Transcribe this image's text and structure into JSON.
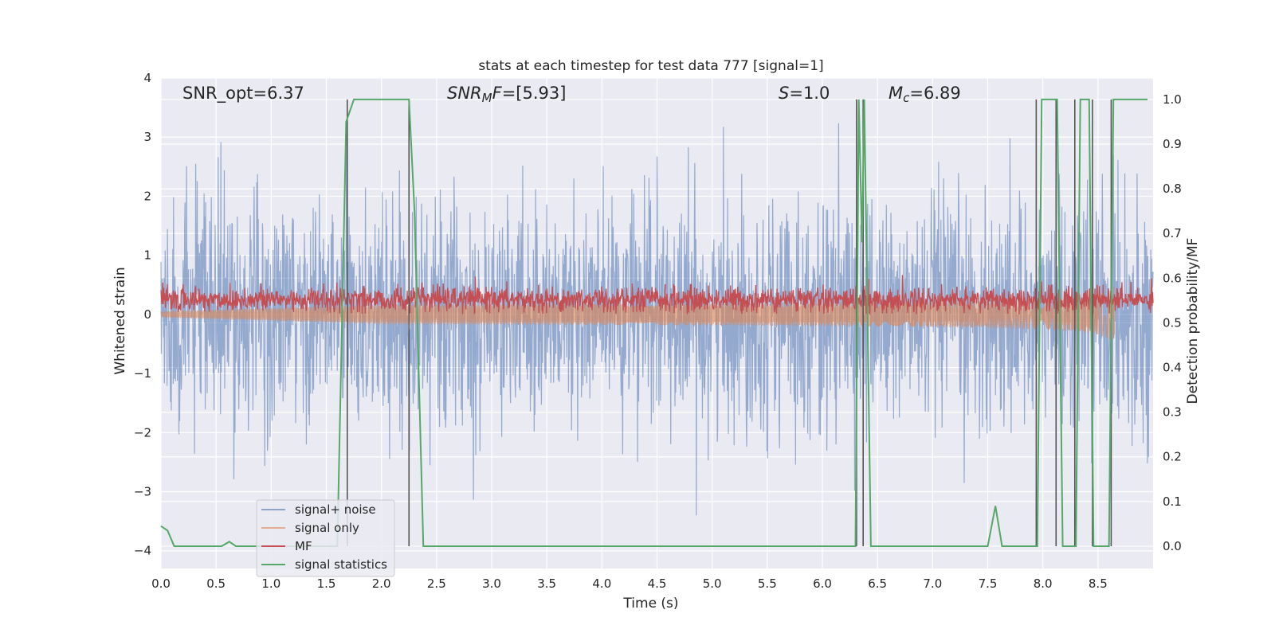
{
  "chart_data": {
    "type": "line",
    "title": "stats at each timestep for test data 777 [signal=1]",
    "xlabel": "Time (s)",
    "ylabel_left": "Whitened strain",
    "ylabel_right": "Detection probability/MF",
    "xlim": [
      0,
      9.0
    ],
    "ylim_left": [
      -4.3,
      4.0
    ],
    "ylim_right": [
      -0.05,
      1.048
    ],
    "x_ticks": [
      0.0,
      0.5,
      1.0,
      1.5,
      2.0,
      2.5,
      3.0,
      3.5,
      4.0,
      4.5,
      5.0,
      5.5,
      6.0,
      6.5,
      7.0,
      7.5,
      8.0,
      8.5
    ],
    "x_tick_labels": [
      "0.0",
      "0.5",
      "1.0",
      "1.5",
      "2.0",
      "2.5",
      "3.0",
      "3.5",
      "4.0",
      "4.5",
      "5.0",
      "5.5",
      "6.0",
      "6.5",
      "7.0",
      "7.5",
      "8.0",
      "8.5"
    ],
    "y_left_ticks": [
      -4,
      -3,
      -2,
      -1,
      0,
      1,
      2,
      3,
      4
    ],
    "y_left_tick_labels": [
      "−4",
      "−3",
      "−2",
      "−1",
      "0",
      "1",
      "2",
      "3",
      "4"
    ],
    "y_right_ticks": [
      0.0,
      0.1,
      0.2,
      0.3,
      0.4,
      0.5,
      0.6,
      0.7,
      0.8,
      0.9,
      1.0
    ],
    "y_right_tick_labels": [
      "0.0",
      "0.1",
      "0.2",
      "0.3",
      "0.4",
      "0.5",
      "0.6",
      "0.7",
      "0.8",
      "0.9",
      "1.0"
    ],
    "grid": true,
    "legend_position": "lower-left",
    "annotations": {
      "snr_opt": "SNR_opt=6.37",
      "snr_mf_base": "SNR",
      "snr_mf_sub": "M",
      "snr_mf_tail": "F",
      "snr_mf_value": "=[5.93]",
      "s_symbol": "S",
      "s_value": "=1.0",
      "mc_symbol": "M",
      "mc_sub": "c",
      "mc_value": "=6.89"
    },
    "series": [
      {
        "name": "signal+ noise",
        "color": "#4c72b0",
        "axis": "left",
        "style": "dense noisy line, sigma ~1, peaks within [-3.4, 3.6]",
        "x_range": [
          0,
          9.0
        ]
      },
      {
        "name": "signal only",
        "color": "#dd8452",
        "axis": "left",
        "style": "chirp, amplitude growing from ~0 to ~0.5 near t=8.6, then ends",
        "x_range": [
          0,
          8.65
        ]
      },
      {
        "name": "MF",
        "color": "#c44e52",
        "axis": "left",
        "style": "noisy band ~0.0 to 0.55",
        "x_range": [
          0,
          9.0
        ]
      },
      {
        "name": "signal statistics",
        "color": "#55a868",
        "axis": "right",
        "x": [
          0.0,
          0.06,
          0.12,
          0.55,
          0.62,
          0.68,
          1.6,
          1.68,
          1.75,
          2.25,
          2.3,
          2.38,
          6.3,
          6.33,
          6.36,
          6.38,
          6.44,
          7.5,
          7.57,
          7.63,
          7.95,
          7.99,
          8.02,
          8.13,
          8.18,
          8.3,
          8.34,
          8.42,
          8.46,
          8.6,
          8.64,
          8.95
        ],
        "y": [
          0.045,
          0.035,
          0.0,
          0.0,
          0.01,
          0.0,
          0.0,
          0.95,
          1.0,
          1.0,
          0.75,
          0.0,
          0.0,
          1.0,
          0.68,
          1.0,
          0.0,
          0.0,
          0.09,
          0.0,
          0.0,
          1.0,
          1.0,
          1.0,
          0.0,
          0.0,
          1.0,
          1.0,
          0.0,
          0.0,
          1.0,
          1.0
        ]
      }
    ],
    "vertical_lines": {
      "color": "#555555",
      "x": [
        1.69,
        2.25,
        6.31,
        6.37,
        7.94,
        8.12,
        8.29,
        8.45,
        8.62
      ]
    }
  }
}
